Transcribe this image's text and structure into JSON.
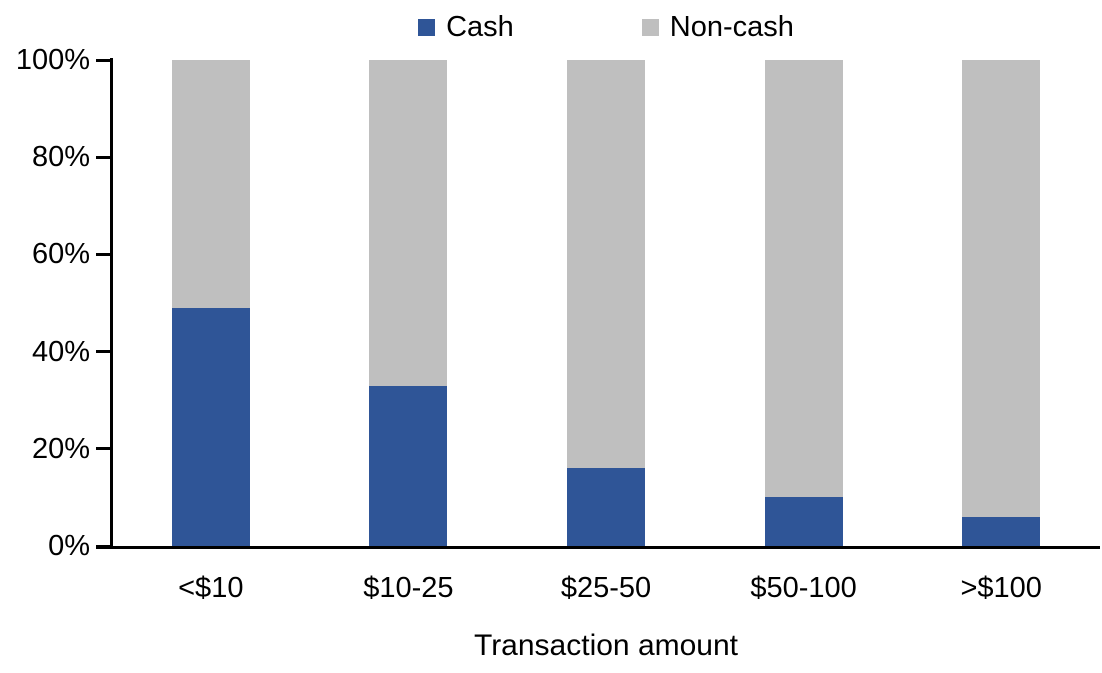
{
  "chart_data": {
    "type": "bar",
    "stacked": true,
    "percent_stacked": true,
    "title": "",
    "xlabel": "Transaction amount",
    "ylabel": "",
    "categories": [
      "<$10",
      "$10-25",
      "$25-50",
      "$50-100",
      ">$100"
    ],
    "series": [
      {
        "name": "Cash",
        "color": "#2F5597",
        "values": [
          49,
          33,
          16,
          10,
          6
        ]
      },
      {
        "name": "Non-cash",
        "color": "#BFBFBF",
        "values": [
          51,
          67,
          84,
          90,
          94
        ]
      }
    ],
    "y_ticks": [
      "0%",
      "20%",
      "40%",
      "60%",
      "80%",
      "100%"
    ],
    "ylim": [
      0,
      100
    ],
    "legend_position": "top",
    "grid": false,
    "axis_color": "#000000",
    "text_color": "#000000"
  }
}
